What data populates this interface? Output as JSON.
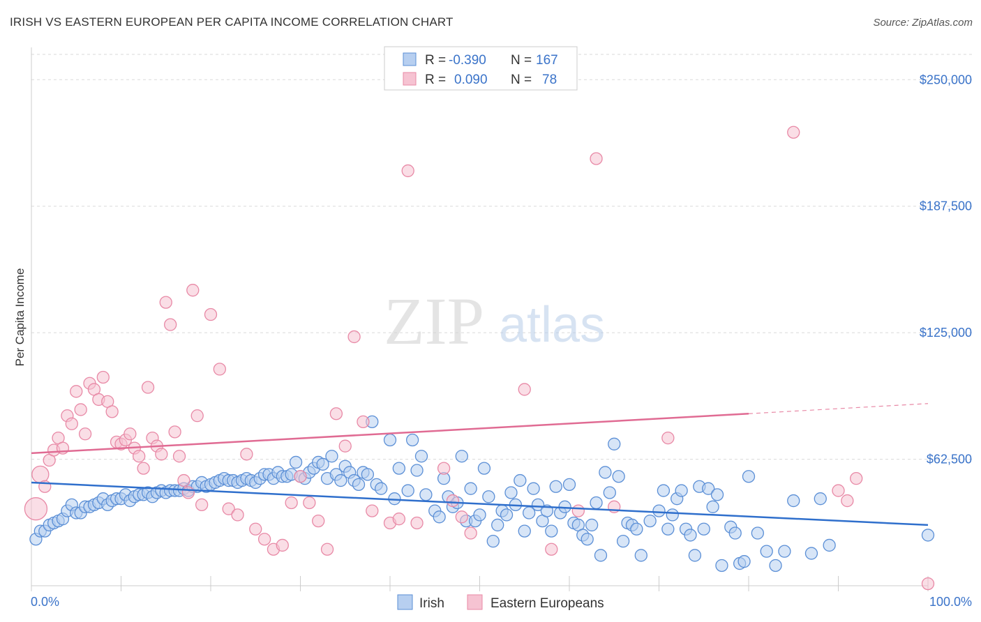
{
  "header": {
    "title": "IRISH VS EASTERN EUROPEAN PER CAPITA INCOME CORRELATION CHART",
    "source": "Source: ZipAtlas.com"
  },
  "watermark": {
    "zip": "ZIP",
    "atlas": "atlas"
  },
  "colors": {
    "irish": "#5b8fd6",
    "irish_fill": "#b7cff0",
    "eastern": "#e889a6",
    "eastern_fill": "#f6c3d2",
    "tick_label": "#3a73c9",
    "grid": "#d9d9d9"
  },
  "chart_data": {
    "type": "scatter",
    "xlabel": "",
    "ylabel": "Per Capita Income",
    "xlim": [
      0,
      100
    ],
    "ylim": [
      0,
      262500
    ],
    "x_tick_labels": [
      "0.0%",
      "100.0%"
    ],
    "y_ticks": [
      62500,
      125000,
      187500,
      250000
    ],
    "y_tick_labels": [
      "$62,500",
      "$125,000",
      "$187,500",
      "$250,000"
    ],
    "grid": "horizontal dashed",
    "legend_placement": "top-center",
    "stats_legend": [
      {
        "r_label": "R =",
        "r_value": "-0.390",
        "n_label": "N =",
        "n_value": "167"
      },
      {
        "r_label": "R =",
        "r_value": "0.090",
        "n_label": "N =",
        "n_value": "78"
      }
    ],
    "series": [
      {
        "name": "Irish",
        "trend": {
          "x": [
            0,
            100
          ],
          "y": [
            51000,
            30000
          ]
        },
        "points": [
          [
            0.5,
            23
          ],
          [
            1,
            27
          ],
          [
            1.5,
            27
          ],
          [
            2,
            30
          ],
          [
            2.5,
            31
          ],
          [
            3,
            32
          ],
          [
            3.5,
            33
          ],
          [
            4,
            37
          ],
          [
            4.5,
            40
          ],
          [
            5,
            36
          ],
          [
            5.5,
            36
          ],
          [
            6,
            39
          ],
          [
            6.5,
            39
          ],
          [
            7,
            40
          ],
          [
            7.5,
            41
          ],
          [
            8,
            43
          ],
          [
            8.5,
            40
          ],
          [
            9,
            42
          ],
          [
            9.5,
            43
          ],
          [
            10,
            43
          ],
          [
            10.5,
            45
          ],
          [
            11,
            42
          ],
          [
            11.5,
            44
          ],
          [
            12,
            45
          ],
          [
            12.5,
            45
          ],
          [
            13,
            46
          ],
          [
            13.5,
            44
          ],
          [
            14,
            46
          ],
          [
            14.5,
            47
          ],
          [
            15,
            46
          ],
          [
            15.5,
            47
          ],
          [
            16,
            47
          ],
          [
            16.5,
            47
          ],
          [
            17,
            48
          ],
          [
            17.5,
            47
          ],
          [
            18,
            49
          ],
          [
            18.5,
            49
          ],
          [
            19,
            51
          ],
          [
            19.5,
            49
          ],
          [
            20,
            50
          ],
          [
            20.5,
            51
          ],
          [
            21,
            52
          ],
          [
            21.5,
            53
          ],
          [
            22,
            52
          ],
          [
            22.5,
            52
          ],
          [
            23,
            51
          ],
          [
            23.5,
            52
          ],
          [
            24,
            53
          ],
          [
            24.5,
            52
          ],
          [
            25,
            51
          ],
          [
            25.5,
            53
          ],
          [
            26,
            55
          ],
          [
            26.5,
            55
          ],
          [
            27,
            53
          ],
          [
            27.5,
            56
          ],
          [
            28,
            54
          ],
          [
            28.5,
            54
          ],
          [
            29,
            55
          ],
          [
            29.5,
            61
          ],
          [
            30,
            54
          ],
          [
            30.5,
            53
          ],
          [
            31,
            56
          ],
          [
            31.5,
            58
          ],
          [
            32,
            61
          ],
          [
            32.5,
            60
          ],
          [
            33,
            53
          ],
          [
            33.5,
            64
          ],
          [
            34,
            55
          ],
          [
            34.5,
            52
          ],
          [
            35,
            59
          ],
          [
            35.5,
            56
          ],
          [
            36,
            52
          ],
          [
            36.5,
            50
          ],
          [
            37,
            56
          ],
          [
            37.5,
            55
          ],
          [
            38,
            81
          ],
          [
            38.5,
            50
          ],
          [
            39,
            48
          ],
          [
            40,
            72
          ],
          [
            40.5,
            43
          ],
          [
            41,
            58
          ],
          [
            42,
            47
          ],
          [
            42.5,
            72
          ],
          [
            43,
            57
          ],
          [
            43.5,
            64
          ],
          [
            44,
            45
          ],
          [
            45,
            37
          ],
          [
            45.5,
            34
          ],
          [
            46,
            53
          ],
          [
            46.5,
            44
          ],
          [
            47,
            39
          ],
          [
            47.5,
            41
          ],
          [
            48,
            64
          ],
          [
            48.5,
            32
          ],
          [
            49,
            48
          ],
          [
            49.5,
            32
          ],
          [
            50,
            35
          ],
          [
            50.5,
            58
          ],
          [
            51,
            44
          ],
          [
            51.5,
            22
          ],
          [
            52,
            30
          ],
          [
            52.5,
            37
          ],
          [
            53,
            35
          ],
          [
            53.5,
            46
          ],
          [
            54,
            40
          ],
          [
            54.5,
            52
          ],
          [
            55,
            27
          ],
          [
            55.5,
            36
          ],
          [
            56,
            48
          ],
          [
            56.5,
            40
          ],
          [
            57,
            32
          ],
          [
            57.5,
            37
          ],
          [
            58,
            27
          ],
          [
            58.5,
            49
          ],
          [
            59,
            36
          ],
          [
            59.5,
            39
          ],
          [
            60,
            50
          ],
          [
            60.5,
            31
          ],
          [
            61,
            30
          ],
          [
            61.5,
            25
          ],
          [
            62,
            23
          ],
          [
            62.5,
            30
          ],
          [
            63,
            41
          ],
          [
            63.5,
            15
          ],
          [
            64,
            56
          ],
          [
            64.5,
            46
          ],
          [
            65,
            70
          ],
          [
            65.5,
            54
          ],
          [
            66,
            22
          ],
          [
            66.5,
            31
          ],
          [
            67,
            30
          ],
          [
            67.5,
            28
          ],
          [
            68,
            15
          ],
          [
            69,
            32
          ],
          [
            70,
            37
          ],
          [
            70.5,
            47
          ],
          [
            71,
            28
          ],
          [
            71.5,
            35
          ],
          [
            72,
            43
          ],
          [
            72.5,
            47
          ],
          [
            73,
            28
          ],
          [
            73.5,
            25
          ],
          [
            74,
            15
          ],
          [
            74.5,
            49
          ],
          [
            75,
            28
          ],
          [
            75.5,
            48
          ],
          [
            76,
            39
          ],
          [
            76.5,
            45
          ],
          [
            77,
            10
          ],
          [
            78,
            29
          ],
          [
            78.5,
            26
          ],
          [
            79,
            11
          ],
          [
            79.5,
            12
          ],
          [
            80,
            54
          ],
          [
            81,
            26
          ],
          [
            82,
            17
          ],
          [
            83,
            10
          ],
          [
            84,
            17
          ],
          [
            85,
            42
          ],
          [
            87,
            16
          ],
          [
            88,
            43
          ],
          [
            89,
            20
          ],
          [
            100,
            25
          ]
        ]
      },
      {
        "name": "Eastern Europeans",
        "trend": {
          "x": [
            0,
            80,
            100
          ],
          "y": [
            65500,
            85000,
            90000
          ]
        },
        "points": [
          [
            0.5,
            38
          ],
          [
            1,
            55
          ],
          [
            1.5,
            49
          ],
          [
            2,
            62
          ],
          [
            2.5,
            67
          ],
          [
            3,
            73
          ],
          [
            3.5,
            68
          ],
          [
            4,
            84
          ],
          [
            4.5,
            80
          ],
          [
            5,
            96
          ],
          [
            5.5,
            87
          ],
          [
            6,
            75
          ],
          [
            6.5,
            100
          ],
          [
            7,
            97
          ],
          [
            7.5,
            92
          ],
          [
            8,
            103
          ],
          [
            8.5,
            91
          ],
          [
            9,
            86
          ],
          [
            9.5,
            71
          ],
          [
            10,
            70
          ],
          [
            10.5,
            72
          ],
          [
            11,
            75
          ],
          [
            11.5,
            68
          ],
          [
            12,
            64
          ],
          [
            12.5,
            58
          ],
          [
            13,
            98
          ],
          [
            13.5,
            73
          ],
          [
            14,
            69
          ],
          [
            14.5,
            65
          ],
          [
            15,
            140
          ],
          [
            15.5,
            129
          ],
          [
            16,
            76
          ],
          [
            16.5,
            64
          ],
          [
            17,
            52
          ],
          [
            17.5,
            46
          ],
          [
            18,
            146
          ],
          [
            18.5,
            84
          ],
          [
            19,
            40
          ],
          [
            20,
            134
          ],
          [
            21,
            107
          ],
          [
            22,
            38
          ],
          [
            23,
            35
          ],
          [
            24,
            65
          ],
          [
            25,
            28
          ],
          [
            26,
            23
          ],
          [
            27,
            18
          ],
          [
            28,
            20
          ],
          [
            29,
            41
          ],
          [
            30,
            54
          ],
          [
            31,
            41
          ],
          [
            32,
            32
          ],
          [
            33,
            18
          ],
          [
            34,
            85
          ],
          [
            35,
            69
          ],
          [
            36,
            123
          ],
          [
            37,
            81
          ],
          [
            38,
            37
          ],
          [
            40,
            31
          ],
          [
            41,
            33
          ],
          [
            42,
            205
          ],
          [
            43,
            31
          ],
          [
            46,
            58
          ],
          [
            47,
            42
          ],
          [
            48,
            34
          ],
          [
            49,
            26
          ],
          [
            55,
            97
          ],
          [
            58,
            18
          ],
          [
            61,
            37
          ],
          [
            63,
            211
          ],
          [
            65,
            39
          ],
          [
            71,
            73
          ],
          [
            85,
            224
          ],
          [
            90,
            47
          ],
          [
            91,
            42
          ],
          [
            92,
            53
          ],
          [
            100,
            1
          ]
        ]
      }
    ]
  },
  "legend": {
    "items": [
      {
        "label": "Irish"
      },
      {
        "label": "Eastern Europeans"
      }
    ]
  }
}
